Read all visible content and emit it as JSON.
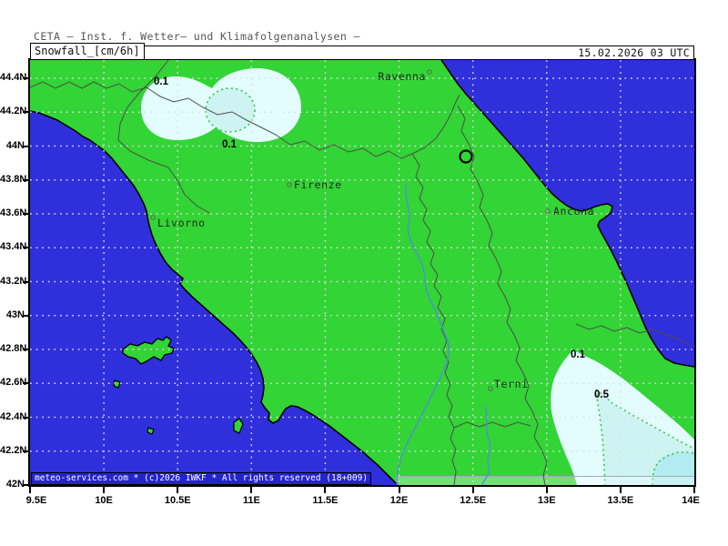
{
  "header": {
    "institute_line": "CETA – Inst. f. Wetter– und Klimafolgenanalysen –",
    "variable_label": "Snowfall_[cm/6h]",
    "datetime_label": "15.02.2026 03 UTC"
  },
  "axes": {
    "lat_labels": [
      "44.4N",
      "44.2N",
      "44N",
      "43.8N",
      "43.6N",
      "43.4N",
      "43.2N",
      "43N",
      "42.8N",
      "42.6N",
      "42.4N",
      "42.2N",
      "42N"
    ],
    "lon_labels": [
      "9.5E",
      "10E",
      "10.5E",
      "11E",
      "11.5E",
      "12E",
      "12.5E",
      "13E",
      "13.5E",
      "14E"
    ]
  },
  "map": {
    "cities": [
      {
        "name": "Ravenna"
      },
      {
        "name": "Firenze"
      },
      {
        "name": "Livorno"
      },
      {
        "name": "Ancona"
      },
      {
        "name": "Terni"
      }
    ],
    "contour_labels": [
      {
        "text": "0.1"
      },
      {
        "text": "0.1"
      },
      {
        "text": "0.1"
      },
      {
        "text": "0.5"
      }
    ],
    "watermark": "meteo-services.com * (c)2026 IWKF * All rights reserved (18+009)"
  },
  "colors": {
    "sea": "#2f2fdb",
    "land": "#33d435",
    "snow_light": "#e3fdfe",
    "snow_mid": "#cdf4f2",
    "snow_deep": "#b2ecf2",
    "contour_dots": "#35c83f",
    "grid": "#e0e0e0",
    "region_border": "#4d4d4d",
    "river": "#5588e8",
    "coastline": "#000000"
  }
}
